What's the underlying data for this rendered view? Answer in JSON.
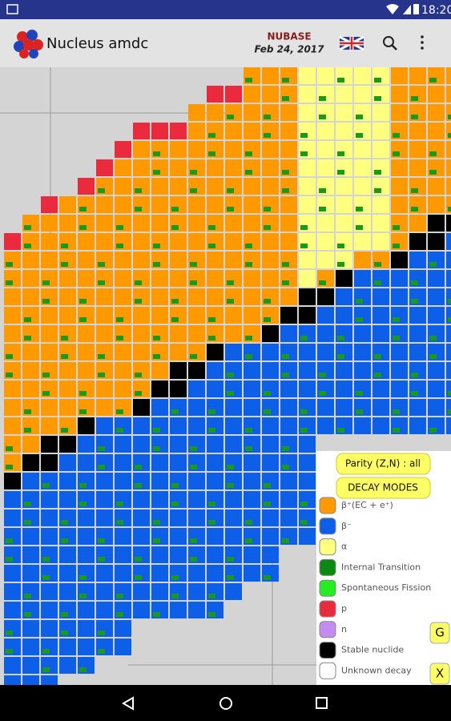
{
  "status_bar": {
    "time": "18:20"
  },
  "app_bar": {
    "title": "Nucleus amdc",
    "source": "NUBASE",
    "date": "Feb 24, 2017"
  },
  "panel": {
    "parity_button": "Parity (Z,N) : all",
    "decay_button": "DECAY MODES",
    "legend": [
      {
        "label": "β⁺(EC + e⁺)",
        "color": "#ff9900"
      },
      {
        "label": "β⁻",
        "color": "#0d5fe8"
      },
      {
        "label": "α",
        "color": "#ffff80"
      },
      {
        "label": "Internal Transition",
        "color": "#0b8a12"
      },
      {
        "label": "Spontaneous Fission",
        "color": "#22ee22"
      },
      {
        "label": "p",
        "color": "#ea2a3d"
      },
      {
        "label": "n",
        "color": "#c58cf0"
      },
      {
        "label": "Stable nuclide",
        "color": "#000000"
      },
      {
        "label": "Unknown decay",
        "color": "#ffffff"
      }
    ]
  },
  "side_buttons": {
    "g": "G",
    "x": "X"
  }
}
